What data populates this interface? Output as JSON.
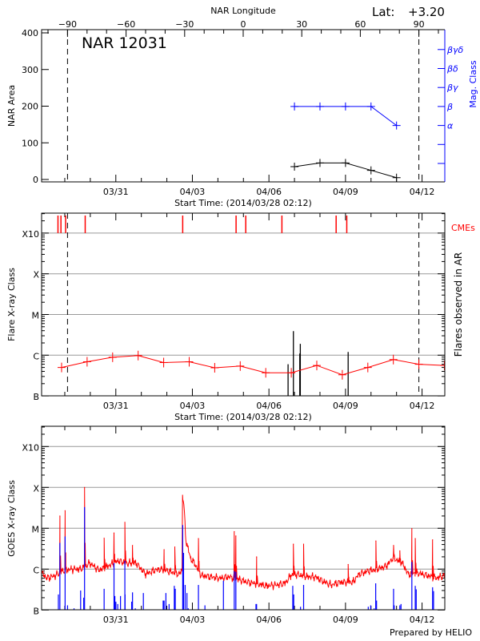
{
  "header": {
    "lat_label": "Lat:",
    "lat_value": "+3.20",
    "footer": "Prepared by HELIO"
  },
  "colors": {
    "red": "#ff0000",
    "blue": "#0000ff",
    "grid": "#999999",
    "axis": "#000000"
  },
  "chart_data": [
    {
      "type": "line",
      "title": "NAR 12031",
      "xlabel": "Start Time: (2014/03/28 02:12)",
      "ylabel": "NAR Area",
      "y2label": "Mag. Class",
      "top_axis_label": "NAR Longitude",
      "top_ticks": [
        -90,
        -60,
        -30,
        0,
        30,
        60,
        90
      ],
      "top_lim": [
        -103,
        103
      ],
      "limb_longitudes": [
        -90,
        90
      ],
      "xticks": [
        "03/31",
        "04/03",
        "04/06",
        "04/09",
        "04/12"
      ],
      "ylim": [
        0,
        400
      ],
      "yticks": [
        0,
        100,
        200,
        300,
        400
      ],
      "y2_categories": [
        "",
        "",
        "α",
        "β",
        "βγ",
        "βδ",
        "βγδ"
      ],
      "series": [
        {
          "color": "#000000",
          "x": [
            "04/07 00:00",
            "04/08 00:00",
            "04/09 00:00",
            "04/10 00:00",
            "04/11 00:00"
          ],
          "values": [
            35,
            45,
            45,
            25,
            5
          ]
        },
        {
          "color": "#0000ff",
          "x": [
            "04/07 00:00",
            "04/08 00:00",
            "04/09 00:00",
            "04/10 00:00",
            "04/11 00:00"
          ],
          "values": [
            "β",
            "β",
            "β",
            "β",
            "α"
          ]
        }
      ]
    },
    {
      "type": "line",
      "xlabel": "Start Time: (2014/03/28 02:12)",
      "ylabel": "Flare X-ray Class",
      "y2label": "Flares observed in AR",
      "cme_label": "CMEs",
      "xticks": [
        "03/31",
        "04/03",
        "04/06",
        "04/09",
        "04/12"
      ],
      "yticks": [
        "B",
        "C",
        "M",
        "X",
        "X10"
      ],
      "scale": "log",
      "grid": true,
      "daily_average": {
        "color": "#ff0000",
        "x": [
          "03/28 21:00",
          "03/29 21:00",
          "03/30 21:00",
          "03/31 21:00",
          "04/01 21:00",
          "04/02 21:00",
          "04/03 21:00",
          "04/04 21:00",
          "04/05 21:00",
          "04/06 21:00",
          "04/07 21:00",
          "04/08 21:00",
          "04/09 21:00",
          "04/10 21:00",
          "04/11 21:00",
          "04/12 21:00"
        ],
        "values": [
          "B5.0",
          "B6.9",
          "B8.9",
          "B9.8",
          "B6.6",
          "B6.9",
          "B4.9",
          "B5.4",
          "B3.7",
          "B3.7",
          "B5.6",
          "B3.3",
          "B5.0",
          "B7.8",
          "B6.0",
          "B5.6"
        ]
      },
      "flares": {
        "color": "#000000",
        "x": [
          "04/06 18:00",
          "04/06 23:00",
          "04/07 05:00",
          "04/07 05:30",
          "04/09 02:30"
        ],
        "values": [
          "B6.0",
          "C3.9",
          "C1.1",
          "C1.9",
          "C1.2"
        ]
      },
      "cmes": {
        "color": "#ff0000",
        "x": [
          "03/28 17:36",
          "03/28 20:24",
          "03/29 00:48",
          "03/29 19:12",
          "04/02 14:54",
          "04/04 17:06",
          "04/05 02:12",
          "04/06 12:12",
          "04/08 15:12",
          "04/09 01:12"
        ]
      }
    },
    {
      "type": "line",
      "ylabel": "GOES X-ray Class",
      "xticks": [
        "03/31",
        "04/03",
        "04/06",
        "04/09",
        "04/12"
      ],
      "yticks": [
        "B",
        "C",
        "M",
        "X",
        "X10"
      ],
      "scale": "log",
      "grid": true,
      "goes_flux": {
        "color": "#ff0000",
        "x": [
          "03/28 02:30",
          "03/28 06:54",
          "03/28 15:36",
          "03/28 21:24",
          "03/29 06:06",
          "03/29 14:54",
          "03/29 23:36",
          "03/30 08:18",
          "03/30 17:00",
          "03/31 01:48",
          "03/31 10:30",
          "03/31 19:12",
          "04/01 03:54",
          "04/01 12:42",
          "04/01 18:30",
          "04/02 03:12",
          "04/02 11:54",
          "04/02 14:18",
          "04/02 14:48",
          "04/02 16:00",
          "04/02 17:48",
          "04/02 22:06",
          "04/03 02:30",
          "04/03 08:18",
          "04/03 17:00",
          "04/04 01:48",
          "04/04 10:30",
          "04/04 19:12",
          "04/05 03:54",
          "04/05 12:42",
          "04/05 21:24",
          "04/06 06:06",
          "04/06 14:54",
          "04/06 20:42",
          "04/07 02:30",
          "04/07 11:12",
          "04/07 20:00",
          "04/08 01:48",
          "04/08 10:30",
          "04/08 19:12",
          "04/09 06:48",
          "04/09 12:42",
          "04/09 21:24",
          "04/10 06:06",
          "04/10 14:48",
          "04/10 20:42",
          "04/11 05:24",
          "04/11 11:12",
          "04/11 19:54",
          "04/12 04:42",
          "04/12 13:24",
          "04/13 01:00"
        ],
        "values": [
          "B8.1",
          "B6.0",
          "B7.0",
          "B9.0",
          "C1.0",
          "C1.0",
          "C1.4",
          "B9.4",
          "C1.2",
          "C1.6",
          "C1.4",
          "C1.4",
          "B7.5",
          "B9.4",
          "C1.0",
          "B8.7",
          "B7.5",
          "C1.0",
          "M6.6",
          "M3.8",
          "C5.3",
          "C1.9",
          "C1.3",
          "B7.0",
          "B6.5",
          "B6.0",
          "B6.5",
          "B5.6",
          "B4.8",
          "B4.4",
          "B3.9",
          "B4.1",
          "B4.4",
          "B7.0",
          "B7.5",
          "B6.5",
          "B6.5",
          "B5.2",
          "B4.1",
          "B4.8",
          "B4.8",
          "B7.5",
          "B9.0",
          "C1.0",
          "C1.2",
          "C1.9",
          "C1.4",
          "B7.5",
          "B8.1",
          "B7.0",
          "B6.0",
          "B7.5"
        ]
      },
      "goes_peaks": {
        "color": "#ff0000",
        "x": [
          "03/28 19:24",
          "03/29 00:18",
          "03/29 18:36",
          "03/30 13:00",
          "03/30 22:18",
          "03/31 08:30",
          "03/31 15:42",
          "04/01 21:24",
          "04/02 07:30",
          "04/03 05:42",
          "04/04 15:24",
          "04/04 16:54",
          "04/05 12:24",
          "04/06 23:00",
          "04/07 08:36",
          "04/09 02:30",
          "04/10 04:36",
          "04/10 21:12",
          "04/11 03:06",
          "04/11 14:24",
          "04/11 17:36",
          "04/12 09:54"
        ],
        "values": [
          "M2.0",
          "M2.7",
          "X1.0",
          "C5.7",
          "C7.7",
          "M1.4",
          "C3.8",
          "C3.0",
          "C3.5",
          "C5.6",
          "C8.3",
          "C6.5",
          "C2.0",
          "C4.1",
          "C4.1",
          "C1.3",
          "C4.9",
          "C3.8",
          "C2.8",
          "C9.8",
          "C5.6",
          "C5.2"
        ]
      },
      "flare_events": {
        "color": "#0000ff",
        "x": [
          "03/28 18:00",
          "03/28 19:24",
          "03/29 00:18",
          "03/29 02:36",
          "03/29 08:42",
          "03/29 14:54",
          "03/29 17:48",
          "03/29 18:36",
          "03/30 13:00",
          "03/30 22:18",
          "03/30 23:06",
          "03/31 00:00",
          "03/31 01:48",
          "03/31 04:24",
          "03/31 08:30",
          "03/31 08:42",
          "03/31 14:54",
          "03/31 15:42",
          "03/31 18:18",
          "04/01 01:54",
          "04/01 20:30",
          "04/01 21:24",
          "04/01 23:06",
          "04/02 02:06",
          "04/02 07:00",
          "04/02 07:54",
          "04/02 14:54",
          "04/02 15:42",
          "04/02 17:12",
          "04/02 18:54",
          "04/02 20:06",
          "04/03 05:42",
          "04/03 11:48",
          "04/04 05:12",
          "04/04 15:24",
          "04/04 16:54",
          "04/05 11:48",
          "04/05 12:24",
          "04/06 22:24",
          "04/06 23:18",
          "04/07 05:42",
          "04/07 08:36",
          "04/09 21:24",
          "04/09 23:42",
          "04/10 02:54",
          "04/10 04:24",
          "04/10 05:12",
          "04/10 21:12",
          "04/10 21:48",
          "04/11 03:06",
          "04/11 04:12",
          "04/11 14:24",
          "04/11 17:36",
          "04/11 18:30",
          "04/12 09:54",
          "04/12 10:48"
        ],
        "values": [
          "B2.4",
          "C4.4",
          "C6.3",
          "B1.3",
          "B1.1",
          "B3.0",
          "B2.0",
          "M3.3",
          "B3.3",
          "C1.4",
          "B2.2",
          "B1.6",
          "B1.4",
          "B2.2",
          "C1.6",
          "B2.4",
          "B1.6",
          "B2.7",
          "B1.1",
          "B2.6",
          "B1.7",
          "B1.7",
          "B2.6",
          "B1.4",
          "B3.9",
          "B3.3",
          "M1.2",
          "C2.5",
          "B4.1",
          "B2.6",
          "B1.1",
          "B4.1",
          "B1.3",
          "B5.2",
          "B9.0",
          "B8.6",
          "B1.4",
          "B1.4",
          "B3.9",
          "B2.4",
          "B1.2",
          "B4.1",
          "B1.2",
          "B1.3",
          "B1.1",
          "B4.5",
          "B1.7",
          "B3.3",
          "B1.3",
          "B1.3",
          "B1.4",
          "C1.5",
          "B3.9",
          "B3.2",
          "B3.6",
          "B2.9"
        ]
      }
    }
  ]
}
